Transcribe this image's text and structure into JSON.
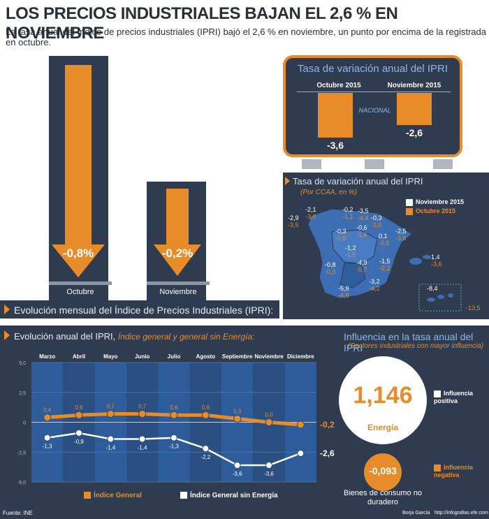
{
  "header": {
    "title": "LOS PRECIOS INDUSTRIALES BAJAN EL 2,6 % EN NOVIEMBRE",
    "subtitle": "La tasa anual del índice de precios industriales (IPRI) bajó el 2,6 % en noviembre, un punto por encima de la registrada en octubre."
  },
  "monthly": {
    "section_label": "Evolución mensual del Índice de Precios Industriales (IPRI):",
    "bars": [
      {
        "month": "Octubre",
        "value_label": "-0,8%",
        "value": -0.8
      },
      {
        "month": "Noviembre",
        "value_label": "-0,2%",
        "value": -0.2
      }
    ]
  },
  "national": {
    "title": "Tasa de variación anual del IPRI",
    "center_label": "NACIONAL",
    "bars": [
      {
        "label": "Octubre 2015",
        "value_label": "-3,6",
        "value": -3.6
      },
      {
        "label": "Noviembre 2015",
        "value_label": "-2,6",
        "value": -2.6
      }
    ]
  },
  "regional": {
    "title": "Tasa de variación anual del IPRI",
    "subtitle": "(Por CCAA, en %)",
    "legend": [
      "Noviembre 2015",
      "Octubre 2015"
    ],
    "values": [
      {
        "nov": "-2,9",
        "oct": "-3,5"
      },
      {
        "nov": "-2,1",
        "oct": "-3,0"
      },
      {
        "nov": "-0,2",
        "oct": "-1,1"
      },
      {
        "nov": "-3,5",
        "oct": "-4,4"
      },
      {
        "nov": "-0,3",
        "oct": "-1,0"
      },
      {
        "nov": "-0,3",
        "oct": "-0,6"
      },
      {
        "nov": "-0,6",
        "oct": "-1,6"
      },
      {
        "nov": "-2,5",
        "oct": "-3,6"
      },
      {
        "nov": "0,1",
        "oct": "-0,5"
      },
      {
        "nov": "-1,2",
        "oct": "-1,5"
      },
      {
        "nov": "1,4",
        "oct": "-3,6"
      },
      {
        "nov": "-0,8",
        "oct": "-0,9"
      },
      {
        "nov": "-4,9",
        "oct": "-5,7"
      },
      {
        "nov": "-1,5",
        "oct": "-2,2"
      },
      {
        "nov": "-3,2",
        "oct": "-4,2"
      },
      {
        "nov": "-5,9",
        "oct": "-6,8"
      },
      {
        "nov": "-8,4",
        "oct": "-13,5"
      }
    ]
  },
  "annual": {
    "title": "Evolución anual del IPRI,",
    "title_em": "Índice general y general sin Energía:",
    "legend": {
      "general": "Índice General",
      "sin_energia": "Índice General sin Energía"
    },
    "end_labels": {
      "general": "-0,2",
      "sin_energia": "-2,6"
    }
  },
  "influence": {
    "title": "Influencia en la tasa anual del IPRI",
    "subtitle": "(Sectores industriales con mayor influencia)",
    "positive": {
      "value": "1,146",
      "sector": "Energía",
      "legend": "Influencia positiva"
    },
    "negative": {
      "value": "-0,093",
      "sector": "Bienes de consumo no duradero",
      "legend": "Influencia negativa"
    }
  },
  "footer": {
    "source": "Fuente: INE",
    "author": "Borja García",
    "site": "http://infografias.efe.com"
  },
  "colors": {
    "dark": "#2f3b4e",
    "orange": "#e88c2a",
    "white": "#ffffff",
    "grid_blue": "#2c5d9a"
  },
  "chart_data": {
    "type": "line",
    "categories": [
      "Marzo",
      "Abril",
      "Mayo",
      "Junio",
      "Julio",
      "Agosto",
      "Septiembre",
      "Noviembre",
      "Diciembre"
    ],
    "series": [
      {
        "name": "Índice General",
        "values": [
          0.4,
          0.6,
          0.7,
          0.7,
          0.6,
          0.6,
          0.3,
          0.0,
          -0.2
        ],
        "labels": [
          "0,4",
          "0,6",
          "0,7",
          "0,7",
          "0,6",
          "0,6",
          "0,3",
          "0,0",
          ""
        ]
      },
      {
        "name": "Índice General sin Energía",
        "values": [
          -1.3,
          -0.9,
          -1.4,
          -1.4,
          -1.3,
          -2.2,
          -3.6,
          -3.6,
          -2.6
        ],
        "labels": [
          "-1,3",
          "-0,9",
          "-1,4",
          "-1,4",
          "-1,3",
          "-2,2",
          "-3,6",
          "-3,6",
          ""
        ]
      }
    ],
    "yticks": [
      "5,0",
      "2,5",
      "0",
      "-2,5",
      "-5,0"
    ],
    "ylim": [
      -5,
      5
    ],
    "grid": true
  }
}
